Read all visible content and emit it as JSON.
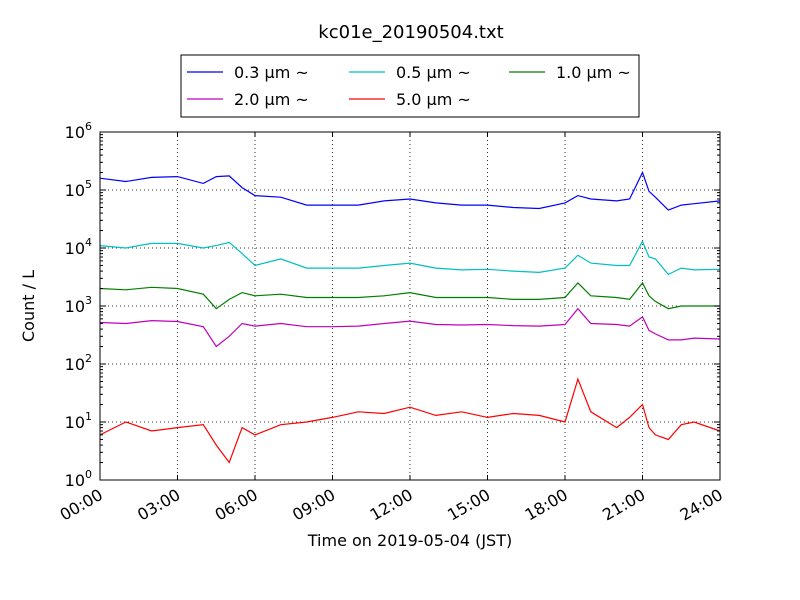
{
  "chart_data": {
    "type": "line",
    "title": "kc01e_20190504.txt",
    "xlabel": "Time on 2019-05-04 (JST)",
    "ylabel": "Count / L",
    "y_scale": "log",
    "ylim": [
      1,
      1000000
    ],
    "xlim": [
      "00:00",
      "24:00"
    ],
    "x_tick_labels": [
      "00:00",
      "03:00",
      "06:00",
      "09:00",
      "12:00",
      "15:00",
      "18:00",
      "21:00",
      "24:00"
    ],
    "y_tick_labels": [
      {
        "base": "10",
        "exp": "0"
      },
      {
        "base": "10",
        "exp": "1"
      },
      {
        "base": "10",
        "exp": "2"
      },
      {
        "base": "10",
        "exp": "3"
      },
      {
        "base": "10",
        "exp": "4"
      },
      {
        "base": "10",
        "exp": "5"
      },
      {
        "base": "10",
        "exp": "6"
      }
    ],
    "grid": true,
    "legend_position": "top-center",
    "x": [
      "00:00",
      "01:00",
      "02:00",
      "03:00",
      "04:00",
      "04:30",
      "05:00",
      "05:30",
      "06:00",
      "07:00",
      "08:00",
      "09:00",
      "10:00",
      "11:00",
      "12:00",
      "13:00",
      "14:00",
      "15:00",
      "16:00",
      "17:00",
      "18:00",
      "18:30",
      "19:00",
      "20:00",
      "20:30",
      "21:00",
      "21:15",
      "21:30",
      "22:00",
      "22:30",
      "23:00",
      "24:00"
    ],
    "series": [
      {
        "name": "0.3 μm ~",
        "color": "#0000ff",
        "values": [
          160000,
          140000,
          165000,
          170000,
          130000,
          170000,
          175000,
          110000,
          80000,
          75000,
          55000,
          55000,
          55000,
          65000,
          70000,
          60000,
          55000,
          55000,
          50000,
          48000,
          60000,
          80000,
          70000,
          65000,
          70000,
          200000,
          95000,
          75000,
          45000,
          55000,
          58000,
          65000
        ]
      },
      {
        "name": "0.5 μm ~",
        "color": "#00bfbf",
        "values": [
          11000,
          10000,
          12000,
          12000,
          10000,
          11000,
          12500,
          8000,
          5000,
          6500,
          4500,
          4500,
          4500,
          5000,
          5500,
          4500,
          4200,
          4300,
          4000,
          3800,
          4500,
          7500,
          5500,
          5000,
          5000,
          13000,
          7000,
          6500,
          3500,
          4500,
          4200,
          4300
        ]
      },
      {
        "name": "1.0 μm ~",
        "color": "#008000",
        "values": [
          2000,
          1900,
          2100,
          2000,
          1600,
          900,
          1300,
          1700,
          1500,
          1600,
          1400,
          1400,
          1400,
          1500,
          1700,
          1400,
          1400,
          1400,
          1300,
          1300,
          1400,
          2500,
          1500,
          1400,
          1300,
          2500,
          1500,
          1200,
          900,
          1000,
          1000,
          1000
        ]
      },
      {
        "name": "2.0 μm ~",
        "color": "#bf00bf",
        "values": [
          520,
          500,
          560,
          540,
          440,
          200,
          300,
          500,
          450,
          500,
          440,
          440,
          450,
          500,
          550,
          480,
          470,
          480,
          460,
          450,
          480,
          900,
          500,
          480,
          450,
          650,
          380,
          330,
          260,
          260,
          280,
          270
        ]
      },
      {
        "name": "5.0 μm ~",
        "color": "#ff0000",
        "values": [
          6,
          10,
          7,
          8,
          9,
          4,
          2,
          8,
          6,
          9,
          10,
          12,
          15,
          14,
          18,
          13,
          15,
          12,
          14,
          13,
          10,
          55,
          15,
          8,
          12,
          20,
          8,
          6,
          5,
          9,
          10,
          7
        ]
      }
    ]
  }
}
